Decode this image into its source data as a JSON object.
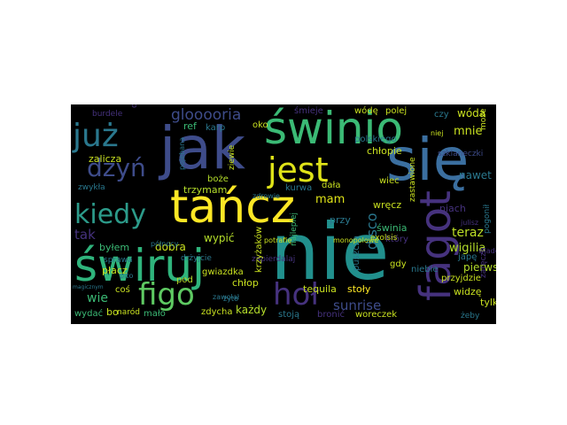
{
  "colors": {
    "background": "#000000",
    "page": "#ffffff",
    "teal": "#21908d",
    "green": "#3bba75",
    "lightgreen": "#7ad151",
    "yellow": "#fde725",
    "blue": "#3e4c8a",
    "purple": "#46327e",
    "darkpurple": "#440154",
    "grey": "#56a7a0"
  },
  "words": [
    {
      "text": "nie"
    },
    {
      "text": "świruj"
    },
    {
      "text": "jak"
    },
    {
      "text": "się"
    },
    {
      "text": "tańcz"
    },
    {
      "text": "świnio"
    },
    {
      "text": "fagot"
    },
    {
      "text": "jest"
    },
    {
      "text": "już"
    },
    {
      "text": "kiedy"
    },
    {
      "text": "figo"
    },
    {
      "text": "dzyń"
    },
    {
      "text": "hoł"
    },
    {
      "text": "glooooria"
    },
    {
      "text": "disco"
    },
    {
      "text": "sunrise"
    },
    {
      "text": "teraz"
    },
    {
      "text": "wigilia"
    },
    {
      "text": "mnie"
    },
    {
      "text": "wóda"
    },
    {
      "text": "nawet"
    },
    {
      "text": "mam"
    },
    {
      "text": "tak"
    },
    {
      "text": "wie"
    },
    {
      "text": "tequila"
    },
    {
      "text": "stoły"
    },
    {
      "text": "pierwsza"
    },
    {
      "text": "każdy"
    },
    {
      "text": "wypić"
    },
    {
      "text": "trzymam"
    },
    {
      "text": "dobra"
    },
    {
      "text": "zalicza"
    },
    {
      "text": "byłem"
    },
    {
      "text": "ref"
    },
    {
      "text": "karp"
    },
    {
      "text": "oko"
    },
    {
      "text": "chłopie"
    },
    {
      "text": "polskiego"
    },
    {
      "text": "wódę"
    },
    {
      "text": "polej"
    },
    {
      "text": "czy"
    },
    {
      "text": "śmieje"
    },
    {
      "text": "burdele"
    },
    {
      "text": "dioni"
    },
    {
      "text": "może"
    },
    {
      "text": "niej"
    },
    {
      "text": "szklaneczki"
    },
    {
      "text": "wręcz"
    },
    {
      "text": "piach"
    },
    {
      "text": "świnia"
    },
    {
      "text": "który"
    },
    {
      "text": "przy"
    },
    {
      "text": "dała"
    },
    {
      "text": "kurwa"
    },
    {
      "text": "boże"
    },
    {
      "text": "zwykła"
    },
    {
      "text": "sprawa"
    },
    {
      "text": "płacz"
    },
    {
      "text": "pod"
    },
    {
      "text": "coś"
    },
    {
      "text": "wydać"
    },
    {
      "text": "bo"
    },
    {
      "text": "naród"
    },
    {
      "text": "mało"
    },
    {
      "text": "zdycha"
    },
    {
      "text": "stoją"
    },
    {
      "text": "bronić"
    },
    {
      "text": "woreczek"
    },
    {
      "text": "tylko"
    },
    {
      "text": "widzę"
    },
    {
      "text": "gdy"
    },
    {
      "text": "niebie"
    },
    {
      "text": "przyjdzie"
    },
    {
      "text": "japę"
    },
    {
      "text": "zaręcza"
    },
    {
      "text": "żeby"
    },
    {
      "text": "gwiazdka"
    },
    {
      "text": "drżyjcie"
    },
    {
      "text": "chłop"
    },
    {
      "text": "północy"
    },
    {
      "text": "zapierdalaj"
    },
    {
      "text": "najlepiej"
    },
    {
      "text": "puszcza"
    },
    {
      "text": "krzyżaków"
    },
    {
      "text": "zawołał"
    },
    {
      "text": "pogonił"
    },
    {
      "text": "julisz"
    },
    {
      "text": "exolsis"
    },
    {
      "text": "monopolowe"
    },
    {
      "text": "potrafię"
    },
    {
      "text": "zdrowie"
    },
    {
      "text": "zastawione"
    },
    {
      "text": "pojebana"
    },
    {
      "text": "ziewie"
    },
    {
      "text": "wiec"
    },
    {
      "text": "pito"
    },
    {
      "text": "magicznym"
    },
    {
      "text": "żyto"
    },
    {
      "text": "wiadek"
    }
  ]
}
